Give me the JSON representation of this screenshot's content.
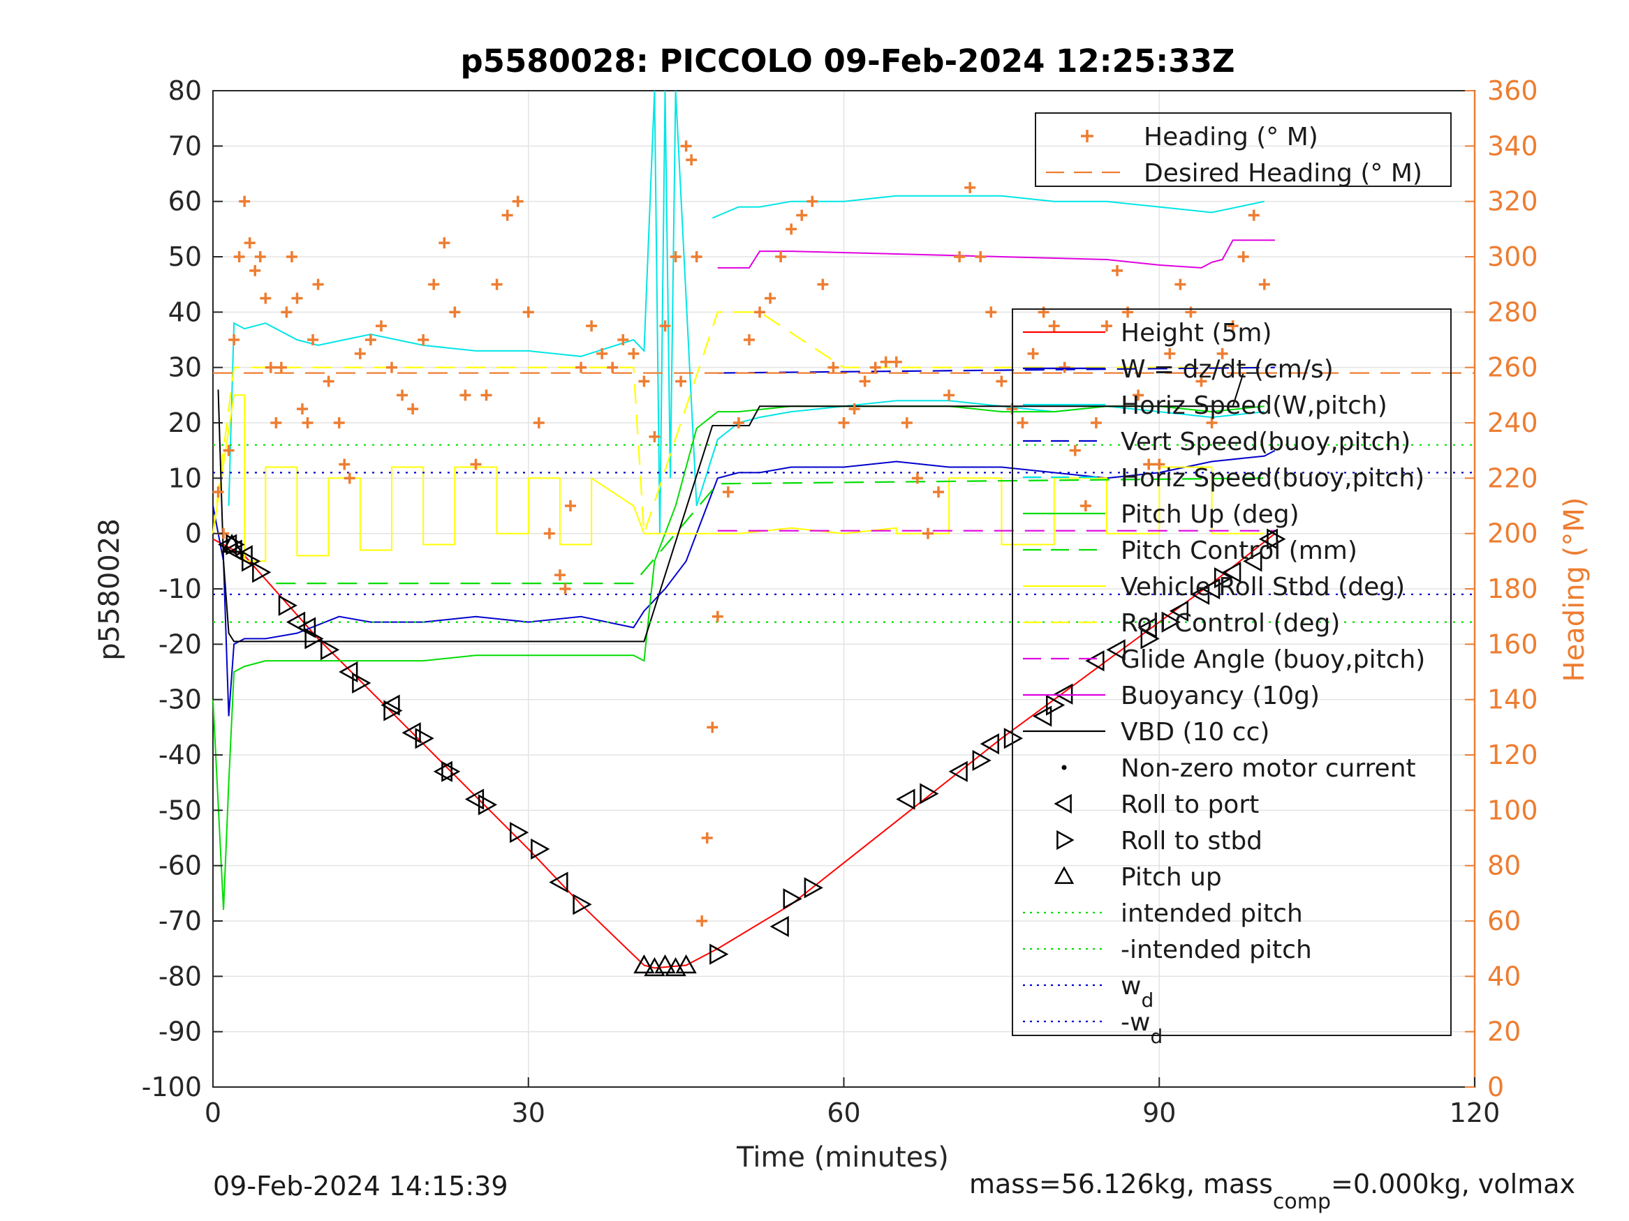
{
  "chart_data": {
    "type": "line",
    "title": "p5580028: PICCOLO 09-Feb-2024 12:25:33Z",
    "xlabel": "Time (minutes)",
    "ylabel": "p5580028",
    "y2label": "Heading (°M)",
    "xlim": [
      0,
      120
    ],
    "ylim": [
      -100,
      80
    ],
    "y2lim": [
      0,
      360
    ],
    "xticks": [
      "0",
      "30",
      "60",
      "90",
      "120"
    ],
    "yticks": [
      "80",
      "70",
      "60",
      "50",
      "40",
      "30",
      "20",
      "10",
      "0",
      "-10",
      "-20",
      "-30",
      "-40",
      "-50",
      "-60",
      "-70",
      "-80",
      "-90",
      "-100"
    ],
    "y2ticks": [
      "360",
      "340",
      "320",
      "300",
      "280",
      "260",
      "240",
      "220",
      "200",
      "180",
      "160",
      "140",
      "120",
      "100",
      "80",
      "60",
      "40",
      "20",
      "0"
    ],
    "grid": true,
    "footer_left": "09-Feb-2024 14:15:39",
    "footer_right": {
      "pre": "mass=56.126kg, mass",
      "sub": "comp",
      "post": "=0.000kg, volmax"
    },
    "colors": {
      "heading": "#ED7D31",
      "height": "#FF0000",
      "w": "#0000CC",
      "horiz": "#00E5E5",
      "pitch": "#00DD00",
      "roll": "#FFFF00",
      "glide": "#E000E0",
      "buoy": "#E000E0",
      "vbd": "#000000"
    },
    "legend_top": {
      "placement": "top-right",
      "items": [
        {
          "label": "Heading (° M)",
          "style": "plus",
          "color": "#ED7D31"
        },
        {
          "label": "Desired Heading (° M)",
          "style": "dash",
          "color": "#ED7D31"
        }
      ]
    },
    "legend_main": {
      "placement": "right",
      "items": [
        {
          "label": "Height (5m)",
          "style": "solid",
          "color": "#FF0000"
        },
        {
          "label": "W = dz/dt (cm/s)",
          "style": "solid",
          "color": "#0000CC"
        },
        {
          "label": "Horiz Speed(W,pitch)",
          "style": "solid",
          "color": "#00E5E5"
        },
        {
          "label": "Vert Speed(buoy,pitch)",
          "style": "dash",
          "color": "#0000CC"
        },
        {
          "label": "Horiz Speed(buoy,pitch)",
          "style": "dash",
          "color": "#00E5E5"
        },
        {
          "label": "Pitch Up (deg)",
          "style": "solid",
          "color": "#00DD00"
        },
        {
          "label": "Pitch Control (mm)",
          "style": "dash",
          "color": "#00DD00"
        },
        {
          "label": "Vehicle Roll Stbd (deg)",
          "style": "solid",
          "color": "#FFFF00"
        },
        {
          "label": "Roll Control (deg)",
          "style": "dash",
          "color": "#FFFF00"
        },
        {
          "label": "Glide Angle (buoy,pitch)",
          "style": "dash",
          "color": "#E000E0"
        },
        {
          "label": "Buoyancy (10g)",
          "style": "solid",
          "color": "#E000E0"
        },
        {
          "label": "VBD (10 cc)",
          "style": "solid",
          "color": "#000000"
        },
        {
          "label": "Non-zero motor current",
          "style": "dot",
          "color": "#000000"
        },
        {
          "label": "Roll to port",
          "style": "tri-left",
          "color": "#000000"
        },
        {
          "label": "Roll to stbd",
          "style": "tri-right",
          "color": "#000000"
        },
        {
          "label": "Pitch up",
          "style": "tri-up",
          "color": "#000000"
        },
        {
          "label": "intended pitch",
          "style": "dotted",
          "color": "#00DD00"
        },
        {
          "label": "-intended pitch",
          "style": "dotted",
          "color": "#00DD00"
        },
        {
          "label": "w",
          "sub": "d",
          "style": "dotted",
          "color": "#0000CC"
        },
        {
          "label": "-w",
          "sub": "d",
          "style": "dotted",
          "color": "#0000CC"
        }
      ]
    },
    "series": [
      {
        "name": "Height (5m)",
        "color": "#FF0000",
        "axis": "left",
        "style": "solid",
        "x": [
          0,
          1,
          3,
          10,
          20,
          30,
          35,
          41,
          42,
          45,
          48,
          55,
          65,
          75,
          85,
          95,
          101
        ],
        "y": [
          -1,
          -2,
          -4,
          -19,
          -38,
          -57,
          -67,
          -78,
          -78.5,
          -78,
          -75,
          -67,
          -52,
          -37,
          -23,
          -9,
          0
        ]
      },
      {
        "name": "W = dz/dt (cm/s)",
        "color": "#0000CC",
        "axis": "left",
        "style": "solid",
        "x": [
          0,
          1,
          1.5,
          2,
          3,
          5,
          8,
          12,
          15,
          20,
          25,
          30,
          35,
          40,
          41,
          43,
          45,
          47,
          48,
          50,
          52,
          55,
          60,
          65,
          70,
          75,
          80,
          85,
          90,
          95,
          100,
          101
        ],
        "y": [
          5,
          -5,
          -33,
          -20,
          -19,
          -19,
          -18,
          -15,
          -16,
          -16,
          -15,
          -16,
          -15,
          -17,
          -14,
          -10,
          -5,
          5,
          10,
          11,
          11,
          12,
          12,
          13,
          12,
          12,
          11,
          10,
          11,
          13,
          14,
          15
        ]
      },
      {
        "name": "Horiz Speed(W,pitch)",
        "color": "#00E5E5",
        "axis": "left",
        "style": "solid",
        "x": [
          1.5,
          2,
          3,
          5,
          8,
          10,
          15,
          20,
          25,
          30,
          35,
          40,
          41,
          42,
          42.5,
          43,
          43.5,
          44,
          46,
          48,
          50,
          52,
          55,
          60,
          65,
          70,
          75,
          80,
          85,
          90,
          95,
          100
        ],
        "y": [
          5,
          38,
          37,
          38,
          35,
          34,
          36,
          34,
          33,
          33,
          32,
          35,
          33,
          80,
          0,
          80,
          10,
          80,
          5,
          17,
          20,
          21,
          22,
          23,
          24,
          24,
          23,
          22,
          23,
          22,
          21,
          22
        ]
      },
      {
        "name": "Horiz Speed(W,pitch) upper",
        "color": "#00E5E5",
        "axis": "left",
        "style": "solid",
        "x": [
          47.5,
          50,
          52,
          55,
          60,
          65,
          70,
          75,
          80,
          85,
          90,
          95,
          100
        ],
        "y": [
          57,
          59,
          59,
          60,
          60,
          61,
          61,
          61,
          60,
          60,
          59,
          58,
          60
        ]
      },
      {
        "name": "Pitch Up (deg)",
        "color": "#00DD00",
        "axis": "left",
        "style": "solid",
        "x": [
          0,
          1,
          1.5,
          2,
          3,
          5,
          10,
          15,
          20,
          25,
          30,
          35,
          40,
          41,
          42,
          44,
          46,
          48,
          50,
          55,
          60,
          65,
          70,
          75,
          80,
          85,
          90,
          95,
          100
        ],
        "y": [
          -30,
          -68,
          -45,
          -25,
          -24,
          -23,
          -23,
          -23,
          -23,
          -22,
          -22,
          -22,
          -22,
          -23,
          -5,
          5,
          19,
          22,
          22,
          23,
          23,
          23,
          23,
          22,
          22,
          23,
          23,
          22,
          23
        ]
      },
      {
        "name": "Vehicle Roll Stbd (deg)",
        "color": "#FFFF00",
        "axis": "left",
        "style": "solid",
        "x": [
          0,
          2,
          3,
          3,
          5,
          5,
          8,
          8,
          11,
          11,
          14,
          14,
          17,
          17,
          20,
          20,
          23,
          23,
          27,
          27,
          30,
          30,
          33,
          33,
          36,
          36,
          40,
          41,
          44,
          46,
          50,
          50,
          55,
          55,
          60,
          60,
          65,
          65,
          70,
          70,
          75,
          75,
          80,
          80,
          85,
          85,
          90,
          90,
          95,
          95,
          100
        ],
        "y": [
          0,
          25,
          25,
          -5,
          -5,
          12,
          12,
          -4,
          -4,
          10,
          10,
          -3,
          -3,
          12,
          12,
          -2,
          -2,
          12,
          12,
          0,
          0,
          10,
          10,
          -2,
          -2,
          10,
          5,
          0,
          0,
          0,
          0,
          0,
          1,
          1,
          0,
          0,
          1,
          0,
          0,
          10,
          10,
          -2,
          -2,
          10,
          10,
          0,
          0,
          12,
          12,
          0,
          0
        ]
      },
      {
        "name": "Roll Control (deg)",
        "color": "#FFFF00",
        "axis": "left",
        "style": "dash",
        "x": [
          0,
          2,
          5,
          10,
          20,
          30,
          40,
          41,
          48,
          52,
          60,
          70,
          80,
          90,
          100
        ],
        "y": [
          0,
          30,
          30,
          30,
          30,
          30,
          30,
          0,
          40,
          40,
          30,
          30,
          30,
          30,
          30
        ]
      },
      {
        "name": "Pitch Control (mm)",
        "color": "#00DD00",
        "axis": "left",
        "style": "dash",
        "x": [
          6,
          40,
          48,
          100
        ],
        "y": [
          -9,
          -9,
          9,
          10
        ]
      },
      {
        "name": "Vert Speed(buoy,pitch)",
        "color": "#0000CC",
        "axis": "left",
        "style": "dash",
        "x": [
          48,
          101
        ],
        "y": [
          29,
          30
        ]
      },
      {
        "name": "Glide Angle (buoy,pitch)",
        "color": "#E000E0",
        "axis": "left",
        "style": "dash",
        "x": [
          48,
          101
        ],
        "y": [
          0.5,
          0.5
        ]
      },
      {
        "name": "Buoyancy (10g)",
        "color": "#E000E0",
        "axis": "left",
        "style": "solid",
        "x": [
          48,
          51,
          52,
          55,
          65,
          75,
          85,
          90,
          94,
          95,
          96,
          97,
          101
        ],
        "y": [
          48,
          48,
          51,
          51,
          50.5,
          50,
          49.5,
          48.5,
          48,
          49,
          49.5,
          53,
          53
        ]
      },
      {
        "name": "VBD (10 cc)",
        "color": "#000000",
        "axis": "left",
        "style": "solid",
        "x": [
          0.5,
          1,
          1.5,
          2,
          41,
          47.5,
          51,
          52,
          97,
          98,
          100
        ],
        "y": [
          26,
          -5,
          -18,
          -19.5,
          -19.5,
          19.5,
          19.5,
          23,
          23,
          29,
          29
        ]
      },
      {
        "name": "intended pitch",
        "color": "#00DD00",
        "axis": "left",
        "style": "dotted",
        "x": [
          0,
          120
        ],
        "y": [
          16,
          16
        ]
      },
      {
        "name": "-intended pitch",
        "color": "#00DD00",
        "axis": "left",
        "style": "dotted",
        "x": [
          0,
          120
        ],
        "y": [
          -16,
          -16
        ]
      },
      {
        "name": "w",
        "color": "#0000CC",
        "axis": "left",
        "style": "dotted",
        "x": [
          0,
          120
        ],
        "y": [
          11,
          11
        ]
      },
      {
        "name": "-w",
        "color": "#0000CC",
        "axis": "left",
        "style": "dotted",
        "x": [
          0,
          120
        ],
        "y": [
          -11,
          -11
        ]
      },
      {
        "name": "Desired Heading (° M)",
        "color": "#ED7D31",
        "axis": "right",
        "style": "dash",
        "x": [
          0,
          120
        ],
        "y": [
          258,
          258
        ]
      }
    ],
    "heading_points": {
      "x": [
        0.5,
        1,
        1.5,
        2,
        2.5,
        3,
        3.5,
        4,
        4.5,
        5,
        5.5,
        6,
        6.5,
        7,
        7.5,
        8,
        8.5,
        9,
        9.5,
        10,
        11,
        12,
        12.5,
        13,
        14,
        15,
        16,
        17,
        18,
        19,
        20,
        21,
        22,
        23,
        24,
        25,
        26,
        27,
        28,
        29,
        30,
        31,
        32,
        33,
        33.5,
        34,
        35,
        36,
        37,
        38,
        39,
        40,
        41,
        42,
        43,
        44,
        44.5,
        45,
        45.5,
        46,
        46.5,
        47,
        47.5,
        48,
        49,
        50,
        51,
        52,
        53,
        54,
        55,
        56,
        57,
        58,
        59,
        60,
        61,
        62,
        63,
        64,
        65,
        66,
        67,
        68,
        69,
        70,
        71,
        72,
        73,
        74,
        75,
        76,
        77,
        78,
        79,
        80,
        81,
        82,
        83,
        84,
        85,
        86,
        87,
        88,
        89,
        90,
        91,
        92,
        93,
        94,
        95,
        96,
        97,
        98,
        99,
        100
      ],
      "y": [
        215,
        200,
        230,
        270,
        300,
        320,
        305,
        295,
        300,
        285,
        260,
        240,
        260,
        280,
        300,
        285,
        245,
        240,
        270,
        290,
        255,
        240,
        225,
        220,
        265,
        270,
        275,
        260,
        250,
        245,
        270,
        290,
        305,
        280,
        250,
        225,
        250,
        290,
        315,
        320,
        280,
        240,
        200,
        185,
        180,
        210,
        260,
        275,
        265,
        260,
        270,
        265,
        255,
        235,
        275,
        300,
        255,
        340,
        335,
        300,
        60,
        90,
        130,
        170,
        215,
        240,
        270,
        280,
        285,
        300,
        310,
        315,
        320,
        290,
        260,
        240,
        245,
        255,
        260,
        262,
        262,
        240,
        220,
        200,
        215,
        250,
        300,
        325,
        300,
        280,
        255,
        245,
        240,
        265,
        280,
        275,
        260,
        230,
        210,
        240,
        275,
        295,
        280,
        250,
        225,
        225,
        265,
        290,
        280,
        255,
        240,
        265,
        275,
        300,
        315,
        290
      ]
    },
    "motor_markers": {
      "roll_to_port": {
        "x": [
          1.5,
          2,
          3,
          8,
          9,
          13,
          17,
          19,
          22,
          25,
          33,
          54,
          66,
          71,
          74,
          79,
          81,
          84,
          86,
          89,
          92,
          94,
          95,
          97,
          99,
          100.5
        ],
        "y": [
          -2,
          -3,
          -4,
          -16,
          -17,
          -25,
          -31,
          -36,
          -43,
          -48,
          -63,
          -71,
          -48,
          -43,
          -38,
          -33,
          -29,
          -23,
          -21,
          -17,
          -14,
          -11,
          -10,
          -7,
          -5,
          -1
        ]
      },
      "roll_to_stbd": {
        "x": [
          2,
          3.5,
          4.5,
          7,
          9.5,
          11,
          14,
          17,
          20,
          22.5,
          26,
          29,
          31,
          35,
          48,
          55,
          57,
          68,
          73,
          76,
          80,
          89,
          91,
          96,
          101
        ],
        "y": [
          -2,
          -5,
          -7,
          -13,
          -19,
          -21,
          -27,
          -32,
          -37,
          -43,
          -49,
          -54,
          -57,
          -67,
          -76,
          -66,
          -64,
          -47,
          -41,
          -37,
          -31,
          -19,
          -16,
          -8,
          -1
        ]
      },
      "pitch_up": {
        "x": [
          1.8,
          41,
          42,
          43,
          44,
          45
        ],
        "y": [
          -2,
          -78,
          -78.5,
          -78,
          -78.5,
          -78
        ]
      }
    }
  }
}
